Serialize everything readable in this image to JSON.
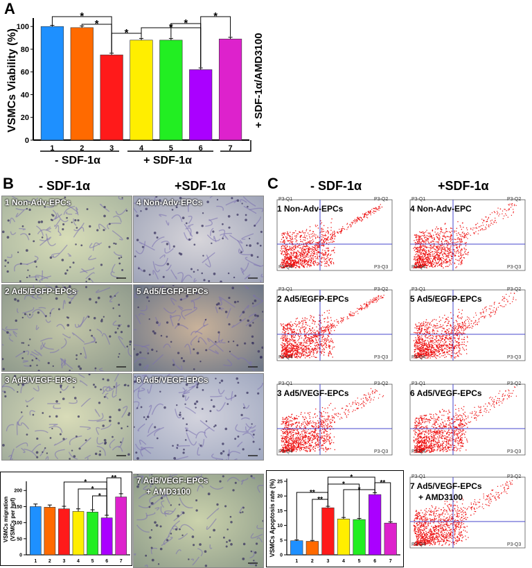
{
  "panel_letters": {
    "a": "A",
    "b": "B",
    "c": "C"
  },
  "panel_a": {
    "rotated_label": "+ SDF-1α/AMD3100",
    "group_minus": "- SDF-1α",
    "group_plus": "+ SDF-1α"
  },
  "panel_b": {
    "header_minus": "- SDF-1α",
    "header_plus": "+SDF-1α",
    "images": [
      {
        "label": "1 Non-Adv-EPCs"
      },
      {
        "label": "4 Non-Adv-EPCs"
      },
      {
        "label": "2 Ad5/EGFP-EPCs"
      },
      {
        "label": "5 Ad5/EGFP-EPCs"
      },
      {
        "label": "3 Ad5/VEGF-EPCs"
      },
      {
        "label": "6 Ad5/VEGF-EPCs"
      },
      {
        "label": "7 Ad5/VEGF-EPCs",
        "label2": "+ AMD3100"
      }
    ]
  },
  "panel_c": {
    "header_minus": "- SDF-1α",
    "header_plus": "+SDF-1α",
    "plots": [
      {
        "label": "1 Non-Adv-EPCs"
      },
      {
        "label": "4 Non-Adv-EPC"
      },
      {
        "label": "2 Ad5/EGFP-EPCs"
      },
      {
        "label": "5 Ad5/EGFP-EPCs"
      },
      {
        "label": "3 Ad5/VEGF-EPCs"
      },
      {
        "label": "6 Ad5/VEGF-EPCs"
      },
      {
        "label": "7 Ad5/VEGF-EPCs",
        "label2": "+ AMD3100"
      }
    ],
    "quadrants": {
      "q1": "P3-Q1",
      "q2": "P3-Q2",
      "q3": "P3-Q3",
      "q4": "P3-Q4"
    }
  },
  "colors": [
    "#1e90ff",
    "#ff6a00",
    "#ff1a1a",
    "#ffee00",
    "#22ee22",
    "#aa00ff",
    "#dd22cc"
  ],
  "chart_data": [
    {
      "id": "viability",
      "type": "bar",
      "categories": [
        "1",
        "2",
        "3",
        "4",
        "5",
        "6",
        "7"
      ],
      "values": [
        100,
        99,
        75,
        88,
        88,
        62,
        89
      ],
      "errors": [
        1,
        1.5,
        1.5,
        1.5,
        1.5,
        1.5,
        1.5
      ],
      "ylabel": "VSMCs Viability (%)",
      "ylim": [
        0,
        105
      ],
      "yticks": [
        "0",
        "20",
        "40",
        "60",
        "80",
        "100"
      ],
      "significance": "*"
    },
    {
      "id": "migration",
      "type": "bar",
      "categories": [
        "1",
        "2",
        "3",
        "4",
        "5",
        "6",
        "7"
      ],
      "values": [
        150,
        148,
        143,
        135,
        133,
        115,
        180
      ],
      "errors": [
        8,
        7,
        8,
        8,
        7,
        8,
        10
      ],
      "ylabel": "VSMCs migration\n(VSMCs per hpf)",
      "ylabel_line1": "VSMCs migration",
      "ylabel_line2": "(VSMCs per hpf)",
      "ylim": [
        0,
        220
      ],
      "yticks": [
        "0",
        "50",
        "100",
        "150",
        "200"
      ],
      "sig1": "*",
      "sig2": "**"
    },
    {
      "id": "apoptosis",
      "type": "bar",
      "categories": [
        "1",
        "2",
        "3",
        "4",
        "5",
        "6",
        "7"
      ],
      "values": [
        4.8,
        4.6,
        16,
        12.2,
        12,
        20.5,
        10.8
      ],
      "errors": [
        0.3,
        0.3,
        0.5,
        0.5,
        0.4,
        0.6,
        0.4
      ],
      "ylabel": "VSMCs Apoptosis rate (%)",
      "ylim": [
        0,
        25
      ],
      "yticks": [
        "0",
        "5",
        "10",
        "15",
        "20",
        "25"
      ],
      "sig1": "*",
      "sig2": "**"
    }
  ]
}
